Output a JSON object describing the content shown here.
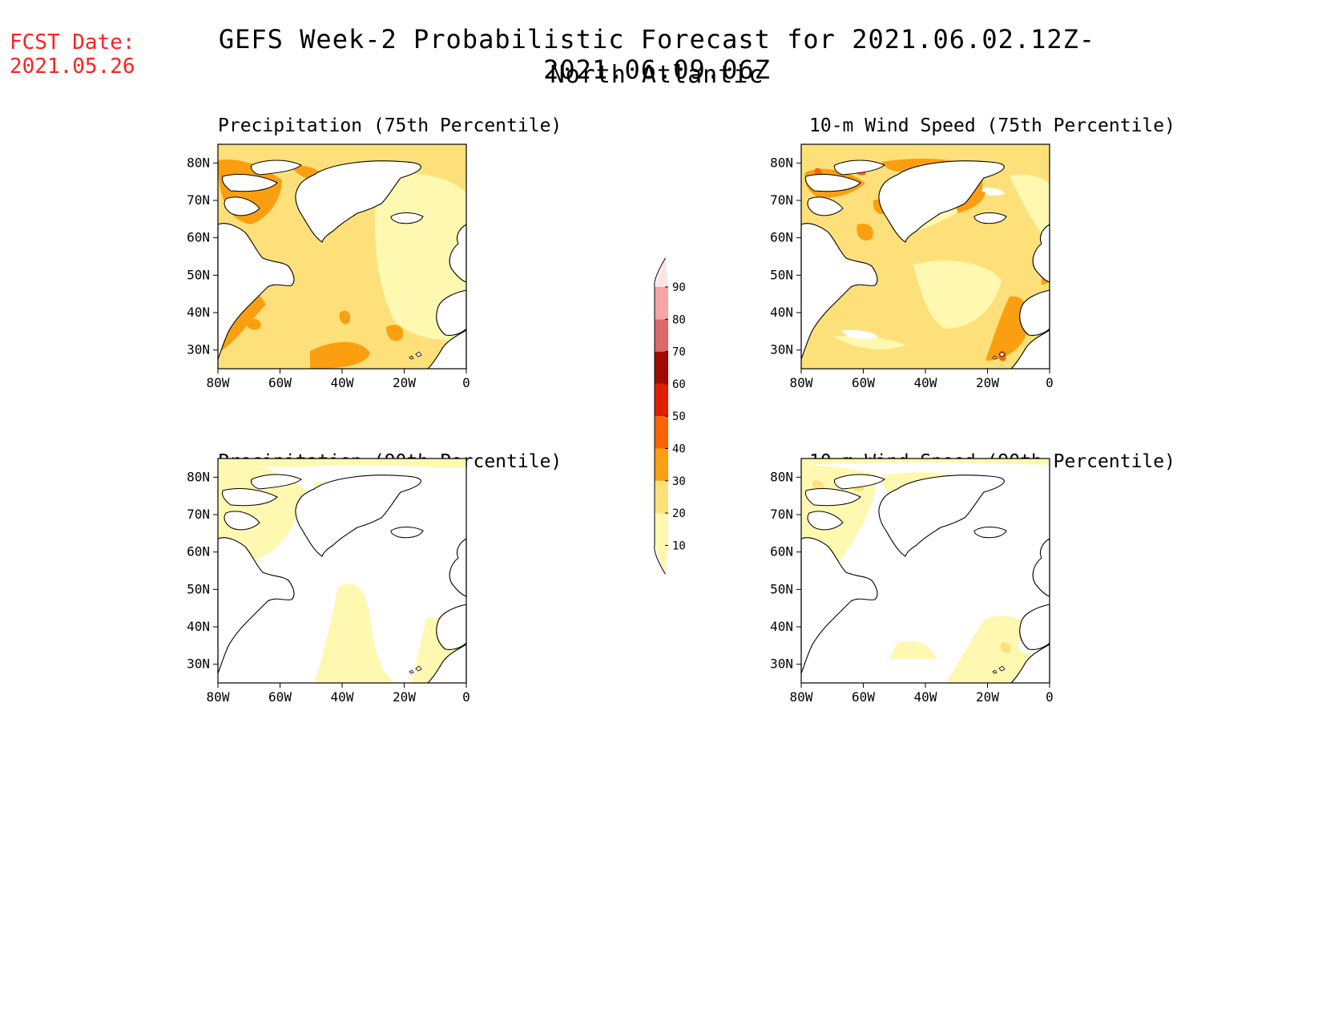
{
  "forecast_date": {
    "label": "FCST Date:",
    "value": "2021.05.26"
  },
  "title": "GEFS Week-2 Probabilistic Forecast for 2021.06.02.12Z-2021.06.09.06Z",
  "subtitle": "North Atlantic",
  "panels": [
    {
      "title": "Precipitation (75th Percentile)"
    },
    {
      "title": "10-m Wind Speed (75th Percentile)"
    },
    {
      "title": "Precipitation (90th Percentile)"
    },
    {
      "title": "10-m Wind Speed (90th Percentile)"
    }
  ],
  "axes": {
    "lat_labels": [
      "80N",
      "70N",
      "60N",
      "50N",
      "40N",
      "30N"
    ],
    "lon_labels": [
      "80W",
      "60W",
      "40W",
      "20W",
      "0"
    ]
  },
  "colorbar": {
    "levels": [
      10,
      20,
      30,
      40,
      50,
      60,
      70,
      80,
      90
    ],
    "colors": [
      "#fff8b0",
      "#fde07a",
      "#fb9f10",
      "#fd6400",
      "#e01e00",
      "#a00a00",
      "#de6868",
      "#f6a4a4",
      "#fde3e3"
    ]
  },
  "colors": {
    "fcst_text": "#ff2020",
    "land": "#ffffff",
    "c10": "#fff8b0",
    "c20": "#fde07a",
    "c30": "#fb9f10",
    "c40": "#fd6400",
    "c50": "#e01e00"
  }
}
